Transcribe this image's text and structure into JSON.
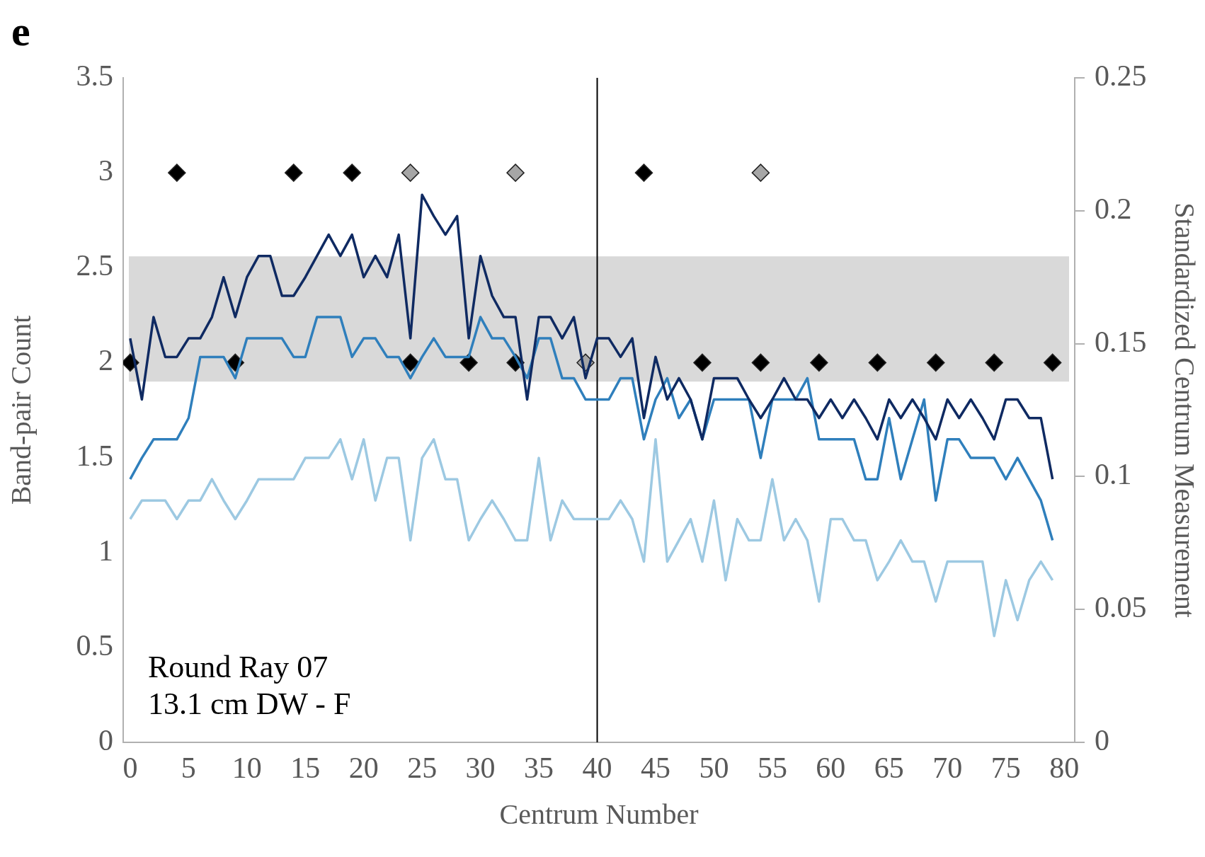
{
  "chart_data": {
    "type": "line",
    "title": "e",
    "xlabel": "Centrum Number",
    "ylabel": "Band-pair Count",
    "y2label": "Standardized Centrum Measurement",
    "annotations": [
      "Round Ray 07",
      "13.1 cm DW - F"
    ],
    "x": [
      0,
      1,
      2,
      3,
      4,
      5,
      6,
      7,
      8,
      9,
      10,
      11,
      12,
      13,
      14,
      15,
      16,
      17,
      18,
      19,
      20,
      21,
      22,
      23,
      24,
      25,
      26,
      27,
      28,
      29,
      30,
      31,
      32,
      33,
      34,
      35,
      36,
      37,
      38,
      39,
      40,
      41,
      42,
      43,
      44,
      45,
      46,
      47,
      48,
      49,
      50,
      51,
      52,
      53,
      54,
      55,
      56,
      57,
      58,
      59,
      60,
      61,
      62,
      63,
      64,
      65,
      66,
      67,
      68,
      69,
      70,
      71,
      72,
      73,
      74,
      75,
      76,
      77,
      78,
      79
    ],
    "series": [
      {
        "type": "line",
        "axis": "y2",
        "color": "#0f2a62",
        "marker": "none",
        "values": [
          0.152,
          0.129,
          0.16,
          0.145,
          0.145,
          0.152,
          0.152,
          0.16,
          0.175,
          0.16,
          0.175,
          0.183,
          0.183,
          0.168,
          0.168,
          0.175,
          0.183,
          0.191,
          0.183,
          0.191,
          0.175,
          0.183,
          0.175,
          0.191,
          0.152,
          0.206,
          0.198,
          0.191,
          0.198,
          0.152,
          0.183,
          0.168,
          0.16,
          0.16,
          0.129,
          0.16,
          0.16,
          0.152,
          0.16,
          0.137,
          0.152,
          0.152,
          0.145,
          0.152,
          0.122,
          0.145,
          0.129,
          0.137,
          0.129,
          0.114,
          0.137,
          0.137,
          0.137,
          0.129,
          0.122,
          0.129,
          0.137,
          0.129,
          0.129,
          0.122,
          0.129,
          0.122,
          0.129,
          0.122,
          0.114,
          0.129,
          0.122,
          0.129,
          0.122,
          0.114,
          0.129,
          0.122,
          0.129,
          0.122,
          0.114,
          0.129,
          0.129,
          0.122,
          0.122,
          0.099
        ]
      },
      {
        "type": "line",
        "axis": "y2",
        "color": "#2f7fbc",
        "marker": "none",
        "values": [
          0.099,
          0.107,
          0.114,
          0.114,
          0.114,
          0.122,
          0.145,
          0.145,
          0.145,
          0.137,
          0.152,
          0.152,
          0.152,
          0.152,
          0.145,
          0.145,
          0.16,
          0.16,
          0.16,
          0.145,
          0.152,
          0.152,
          0.145,
          0.145,
          0.137,
          0.145,
          0.152,
          0.145,
          0.145,
          0.145,
          0.16,
          0.152,
          0.152,
          0.145,
          0.137,
          0.152,
          0.152,
          0.137,
          0.137,
          0.129,
          0.129,
          0.129,
          0.137,
          0.137,
          0.114,
          0.129,
          0.137,
          0.122,
          0.129,
          0.114,
          0.129,
          0.129,
          0.129,
          0.129,
          0.107,
          0.129,
          0.129,
          0.129,
          0.137,
          0.114,
          0.114,
          0.114,
          0.114,
          0.099,
          0.099,
          0.122,
          0.099,
          0.114,
          0.129,
          0.091,
          0.114,
          0.114,
          0.107,
          0.107,
          0.107,
          0.099,
          0.107,
          0.099,
          0.091,
          0.076
        ]
      },
      {
        "type": "line",
        "axis": "y2",
        "color": "#9dc9e2",
        "marker": "none",
        "values": [
          0.084,
          0.091,
          0.091,
          0.091,
          0.084,
          0.091,
          0.091,
          0.099,
          0.091,
          0.084,
          0.091,
          0.099,
          0.099,
          0.099,
          0.099,
          0.107,
          0.107,
          0.107,
          0.114,
          0.099,
          0.114,
          0.091,
          0.107,
          0.107,
          0.076,
          0.107,
          0.114,
          0.099,
          0.099,
          0.076,
          0.084,
          0.091,
          0.084,
          0.076,
          0.076,
          0.107,
          0.076,
          0.091,
          0.084,
          0.084,
          0.084,
          0.084,
          0.091,
          0.084,
          0.068,
          0.114,
          0.068,
          0.076,
          0.084,
          0.068,
          0.091,
          0.061,
          0.084,
          0.076,
          0.076,
          0.099,
          0.076,
          0.084,
          0.076,
          0.053,
          0.084,
          0.084,
          0.076,
          0.076,
          0.061,
          0.068,
          0.076,
          0.068,
          0.068,
          0.053,
          0.068,
          0.068,
          0.068,
          0.068,
          0.04,
          0.061,
          0.046,
          0.061,
          0.068,
          0.061
        ]
      },
      {
        "type": "scatter",
        "axis": "y",
        "color": "#000000",
        "marker": "diamond",
        "x": [
          4,
          14,
          19,
          44,
          0,
          9,
          24,
          29,
          33,
          49,
          54,
          59,
          64,
          69,
          74,
          79
        ],
        "values": [
          3,
          3,
          3,
          3,
          2,
          2,
          2,
          2,
          2,
          2,
          2,
          2,
          2,
          2,
          2,
          2
        ]
      },
      {
        "type": "scatter",
        "axis": "y",
        "color": "#a6a6a6",
        "marker": "diamond",
        "x": [
          24,
          33,
          54,
          39
        ],
        "values": [
          3,
          3,
          3,
          2
        ]
      }
    ],
    "xlim": [
      -0.6,
      80.9
    ],
    "xticks": [
      0,
      5,
      10,
      15,
      20,
      25,
      30,
      35,
      40,
      45,
      50,
      55,
      60,
      65,
      70,
      75,
      80
    ],
    "ylim": [
      0,
      3.5
    ],
    "yticks": [
      0,
      0.5,
      1,
      1.5,
      2,
      2.5,
      3,
      3.5
    ],
    "y2lim": [
      0,
      0.25
    ],
    "y2ticks": [
      0,
      0.05,
      0.1,
      0.15,
      0.2,
      0.25
    ],
    "bands": [
      {
        "axis": "y",
        "from": 1.9,
        "to": 2.56,
        "color": "#d9d9d9"
      }
    ],
    "ref_lines": [
      {
        "axis": "x",
        "value": 40,
        "color": "#000000"
      }
    ],
    "grid": false,
    "legend": false
  }
}
